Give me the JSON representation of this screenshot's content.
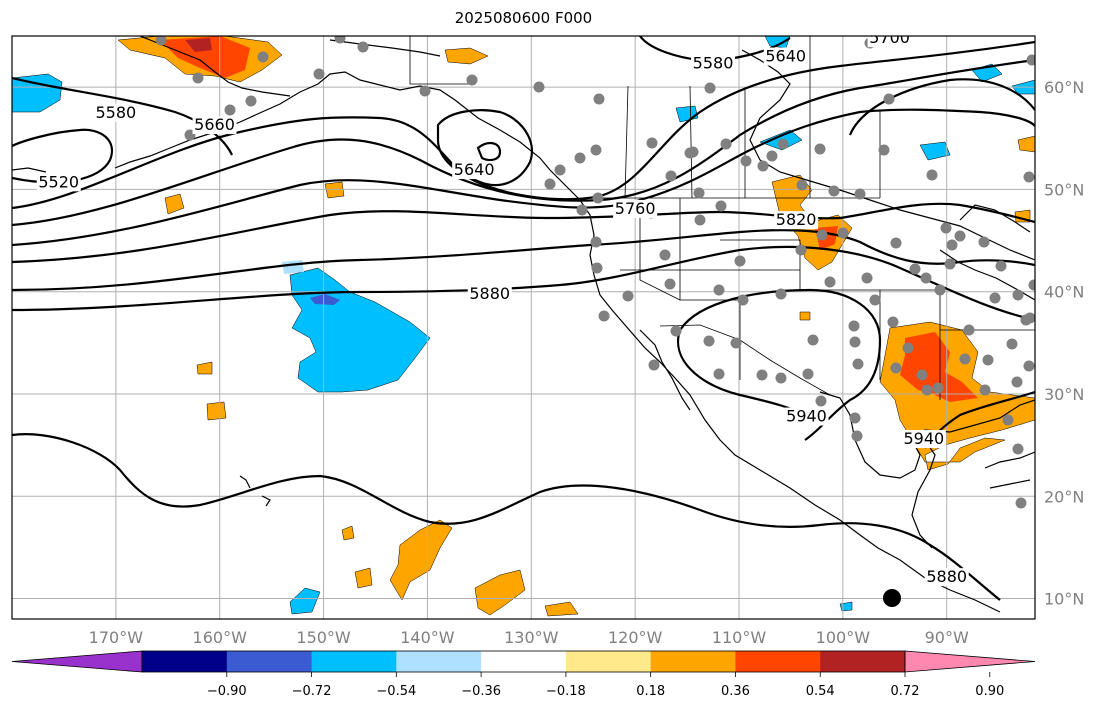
{
  "title": "2025080600 F000",
  "lat_ticks": [
    {
      "value": 60,
      "label": "60°N"
    },
    {
      "value": 50,
      "label": "50°N"
    },
    {
      "value": 40,
      "label": "40°N"
    },
    {
      "value": 30,
      "label": "30°N"
    },
    {
      "value": 20,
      "label": "20°N"
    },
    {
      "value": 10,
      "label": "10°N"
    }
  ],
  "lon_ticks": [
    {
      "value": -170,
      "label": "170°W"
    },
    {
      "value": -160,
      "label": "160°W"
    },
    {
      "value": -150,
      "label": "150°W"
    },
    {
      "value": -140,
      "label": "140°W"
    },
    {
      "value": -130,
      "label": "130°W"
    },
    {
      "value": -120,
      "label": "120°W"
    },
    {
      "value": -110,
      "label": "110°W"
    },
    {
      "value": -100,
      "label": "100°W"
    },
    {
      "value": -90,
      "label": "90°W"
    }
  ],
  "contour_labels": [
    {
      "text": "5580",
      "lon": -170,
      "lat": 57.2
    },
    {
      "text": "5660",
      "lon": -160.5,
      "lat": 56
    },
    {
      "text": "5520",
      "lon": -175.5,
      "lat": 50.4
    },
    {
      "text": "5640",
      "lon": -135.5,
      "lat": 51.6
    },
    {
      "text": "5580",
      "lon": -112.5,
      "lat": 62
    },
    {
      "text": "5640",
      "lon": -105.5,
      "lat": 62.7
    },
    {
      "text": "5700",
      "lon": -95.5,
      "lat": 64.5
    },
    {
      "text": "5760",
      "lon": -120,
      "lat": 47.8
    },
    {
      "text": "5820",
      "lon": -104.5,
      "lat": 46.7
    },
    {
      "text": "5880",
      "lon": -134,
      "lat": 39.5
    },
    {
      "text": "5940",
      "lon": -103.5,
      "lat": 27.5
    },
    {
      "text": "5940",
      "lon": -92.2,
      "lat": 25.3
    },
    {
      "text": "5880",
      "lon": -90,
      "lat": 11.8
    }
  ],
  "colorbar": {
    "colors": [
      "#9932cc",
      "#00008b",
      "#3a5bd1",
      "#00bfff",
      "#b0e0ff",
      "#ffffff",
      "#ffe98a",
      "#ffa500",
      "#ff4500",
      "#b22222",
      "#ff88b0"
    ],
    "tick_labels": [
      "−0.90",
      "−0.72",
      "−0.54",
      "−0.36",
      "−0.18",
      "0.18",
      "0.36",
      "0.54",
      "0.72",
      "0.90"
    ]
  }
}
